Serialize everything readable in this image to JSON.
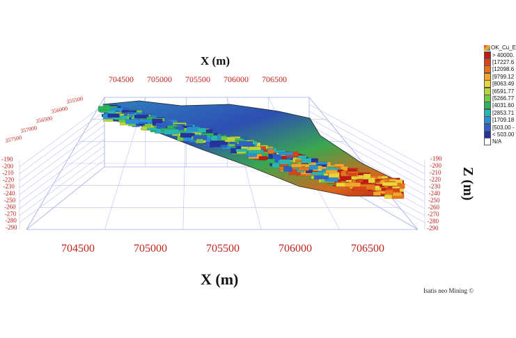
{
  "axis": {
    "x_title_top": "X (m)",
    "x_title_bottom": "X (m)",
    "z_title": "Z (m)",
    "x_ticks_top": [
      "704500",
      "705000",
      "705500",
      "706000",
      "706500"
    ],
    "x_ticks_bottom": [
      "704500",
      "705000",
      "705500",
      "706000",
      "706500"
    ],
    "z_ticks_left": [
      "-190",
      "-200",
      "-210",
      "-220",
      "-230",
      "-240",
      "-250",
      "-260",
      "-270",
      "-280",
      "-290"
    ],
    "z_ticks_right": [
      "-190",
      "-200",
      "-210",
      "-220",
      "-230",
      "-240",
      "-250",
      "-260",
      "-270",
      "-280",
      "-290"
    ],
    "y_ticks_left": [
      "357500",
      "357000",
      "356500",
      "356000",
      "355500"
    ]
  },
  "legend": {
    "title": "OK_Cu_E",
    "items": [
      {
        "label": "> 40000.",
        "color": "#c01a14"
      },
      {
        "label": "[17227.6",
        "color": "#d9431a"
      },
      {
        "label": "[12098.6",
        "color": "#e8731f"
      },
      {
        "label": "[9799.12",
        "color": "#f2a72a"
      },
      {
        "label": "[8063.49",
        "color": "#e9d43a"
      },
      {
        "label": "[6591.77",
        "color": "#b8d63c"
      },
      {
        "label": "[5266.77",
        "color": "#6fc84a"
      },
      {
        "label": "[4031.60",
        "color": "#2fb35a"
      },
      {
        "label": "[2853.71",
        "color": "#29b5b0"
      },
      {
        "label": "[1709.18",
        "color": "#2b8fd6"
      },
      {
        "label": "[503.00 -",
        "color": "#2f5fc7"
      },
      {
        "label": "< 503.00",
        "color": "#27329c"
      },
      {
        "label": "N/A",
        "color": "#ffffff"
      }
    ]
  },
  "credit": "Isatis neo Mining ©"
}
